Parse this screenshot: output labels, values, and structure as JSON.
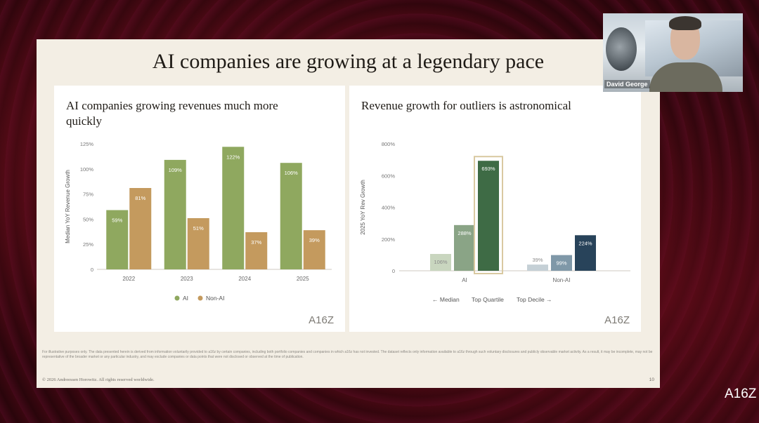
{
  "slide": {
    "title": "AI companies are growing at a legendary pace",
    "disclaimer": "For illustrative purposes only. The data presented herein is derived from information voluntarily provided to a16z by certain companies, including both portfolio companies and companies in which a16z has not invested. The dataset reflects only information available to a16z through such voluntary disclosures and publicly observable market activity. As a result, it may be incomplete, may not be representative of the broader market or any particular industry, and may exclude companies or data points that were not disclosed or observed at the time of publication.",
    "copyright": "© 2026 Andreessen Horowitz. All rights reserved worldwide.",
    "page_number": "10",
    "logo": "A16Z"
  },
  "webcam": {
    "name": "David George"
  },
  "corner_logo": "A16Z",
  "chart_data": [
    {
      "type": "bar",
      "title": "AI companies growing revenues much more quickly",
      "ylabel": "Median YoY Revenue Growth",
      "xlabel": "",
      "ylim": [
        0,
        125
      ],
      "yticks": [
        0,
        25,
        50,
        75,
        100,
        125
      ],
      "ytick_labels": [
        "0",
        "25%",
        "50%",
        "75%",
        "100%",
        "125%"
      ],
      "categories": [
        "2022",
        "2023",
        "2024",
        "2025"
      ],
      "series": [
        {
          "name": "AI",
          "color": "#8fa85f",
          "values": [
            59,
            109,
            122,
            106
          ],
          "labels": [
            "59%",
            "109%",
            "122%",
            "106%"
          ]
        },
        {
          "name": "Non-AI",
          "color": "#c49a5e",
          "values": [
            81,
            51,
            37,
            39
          ],
          "labels": [
            "81%",
            "51%",
            "37%",
            "39%"
          ]
        }
      ],
      "legend": "bottom",
      "grid": false
    },
    {
      "type": "bar",
      "title": "Revenue growth for outliers is astronomical",
      "ylabel": "2025 YoY Rev Growth",
      "xlabel": "",
      "ylim": [
        0,
        800
      ],
      "yticks": [
        0,
        200,
        400,
        600,
        800
      ],
      "ytick_labels": [
        "0",
        "200%",
        "400%",
        "600%",
        "800%"
      ],
      "categories": [
        "AI",
        "Non-AI"
      ],
      "series": [
        {
          "name": "Median",
          "colors": [
            "#c9d6bf",
            "#c5d0d6"
          ],
          "values": [
            106,
            39
          ],
          "labels": [
            "106%",
            "39%"
          ]
        },
        {
          "name": "Top Quartile",
          "colors": [
            "#8aa486",
            "#7f98a8"
          ],
          "values": [
            288,
            99
          ],
          "labels": [
            "288%",
            "99%"
          ]
        },
        {
          "name": "Top Decile",
          "colors": [
            "#3e6b45",
            "#28435a"
          ],
          "values": [
            693,
            224
          ],
          "labels": [
            "693%",
            "224%"
          ]
        }
      ],
      "highlight": {
        "category": "AI",
        "series": "Top Decile"
      },
      "legend_text": {
        "left": "← Median",
        "middle": "Top Quartile",
        "right": "Top Decile →"
      },
      "legend": "bottom",
      "grid": false
    }
  ]
}
